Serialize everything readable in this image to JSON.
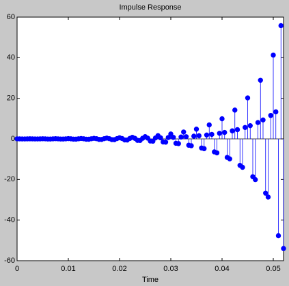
{
  "chart_data": {
    "type": "stem",
    "title": "Impulse Response",
    "xlabel": "Time",
    "color": "#0000ff",
    "xlim": [
      0,
      0.052
    ],
    "ylim": [
      -60,
      60
    ],
    "xticks": [
      0,
      0.01,
      0.02,
      0.03,
      0.04,
      0.05
    ],
    "yticks": [
      -60,
      -40,
      -20,
      0,
      20,
      40,
      60
    ],
    "x": [
      0,
      0.0005,
      0.001,
      0.0015,
      0.002,
      0.0025,
      0.003,
      0.0035,
      0.004,
      0.0045,
      0.005,
      0.0055,
      0.006,
      0.0065,
      0.007,
      0.0075,
      0.008,
      0.0085,
      0.009,
      0.0095,
      0.01,
      0.0105,
      0.011,
      0.0115,
      0.012,
      0.0125,
      0.013,
      0.0135,
      0.014,
      0.0145,
      0.015,
      0.0155,
      0.016,
      0.0165,
      0.017,
      0.0175,
      0.018,
      0.0185,
      0.019,
      0.0195,
      0.02,
      0.0205,
      0.021,
      0.0215,
      0.022,
      0.0225,
      0.023,
      0.0235,
      0.024,
      0.0245,
      0.025,
      0.0255,
      0.026,
      0.0265,
      0.027,
      0.0275,
      0.028,
      0.0285,
      0.029,
      0.0295,
      0.03,
      0.0305,
      0.031,
      0.0315,
      0.032,
      0.0325,
      0.033,
      0.0335,
      0.034,
      0.0345,
      0.035,
      0.0355,
      0.036,
      0.0365,
      0.037,
      0.0375,
      0.038,
      0.0385,
      0.039,
      0.0395,
      0.04,
      0.0405,
      0.041,
      0.0415,
      0.042,
      0.0425,
      0.043,
      0.0435,
      0.044,
      0.0445,
      0.045,
      0.0455,
      0.046,
      0.0465,
      0.047,
      0.0475,
      0.048,
      0.0485,
      0.049,
      0.0495,
      0.05,
      0.0505,
      0.051,
      0.0515,
      0.052
    ],
    "values": [
      0.03,
      0.01,
      -0.03,
      -0.03,
      0.01,
      0.04,
      0.01,
      -0.03,
      -0.03,
      0.01,
      0.07,
      0.02,
      -0.06,
      -0.06,
      0.02,
      0.09,
      0.03,
      -0.08,
      -0.08,
      0.03,
      0.13,
      0.04,
      -0.11,
      -0.12,
      0.05,
      0.18,
      0.06,
      -0.16,
      -0.17,
      0.07,
      0.27,
      0.09,
      -0.25,
      -0.27,
      0.11,
      0.38,
      0.12,
      -0.35,
      -0.38,
      0.15,
      0.55,
      0.18,
      -0.51,
      -0.55,
      0.22,
      0.79,
      0.25,
      -0.72,
      -0.78,
      0.3,
      1.1,
      0.36,
      -1.04,
      -1.12,
      0.45,
      1.6,
      0.54,
      -1.52,
      -1.6,
      0.66,
      2.4,
      0.75,
      -2.16,
      -2.32,
      0.93,
      3.4,
      1.08,
      -3.12,
      -3.36,
      1.35,
      4.8,
      1.56,
      -4.48,
      -4.8,
      1.92,
      6.9,
      2.22,
      -6.4,
      -6.88,
      2.76,
      9.9,
      3.18,
      -9.12,
      -9.84,
      3.96,
      14.2,
      4.56,
      -13.04,
      -14.0,
      5.64,
      20.2,
      6.51,
      -18.64,
      -20.08,
      8.07,
      28.9,
      9.33,
      -26.72,
      -28.64,
      11.55,
      41.3,
      13.32,
      -47.7,
      55.8,
      -54
    ]
  }
}
